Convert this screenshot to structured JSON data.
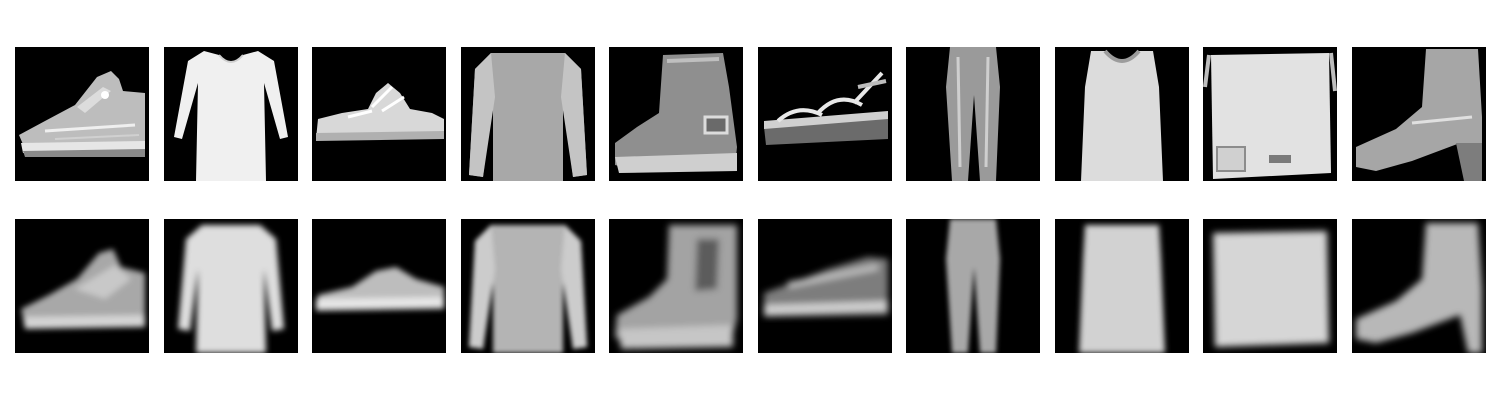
{
  "figure": {
    "background": "#ffffff",
    "tile_background": "#000000",
    "rows": [
      {
        "row_name": "original-row",
        "items": [
          {
            "item": "sneaker"
          },
          {
            "item": "dress"
          },
          {
            "item": "sandal"
          },
          {
            "item": "pullover"
          },
          {
            "item": "ankle-boot"
          },
          {
            "item": "sandal"
          },
          {
            "item": "trouser"
          },
          {
            "item": "shirt"
          },
          {
            "item": "bag"
          },
          {
            "item": "ankle-boot"
          }
        ]
      },
      {
        "row_name": "reconstruction-row",
        "items": [
          {
            "item": "sneaker"
          },
          {
            "item": "dress"
          },
          {
            "item": "sandal"
          },
          {
            "item": "pullover"
          },
          {
            "item": "ankle-boot"
          },
          {
            "item": "sandal"
          },
          {
            "item": "trouser"
          },
          {
            "item": "shirt"
          },
          {
            "item": "bag"
          },
          {
            "item": "ankle-boot"
          }
        ]
      }
    ]
  }
}
